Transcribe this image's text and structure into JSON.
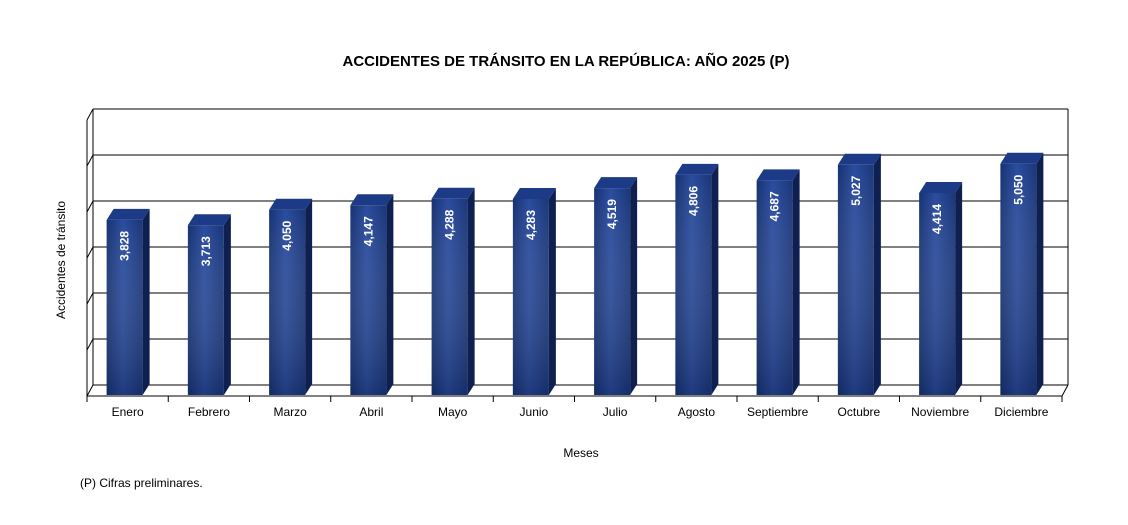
{
  "chart_data": {
    "type": "bar",
    "title": "ACCIDENTES DE TRÁNSITO EN LA REPÚBLICA: AÑO 2025 (P)",
    "xlabel": "Meses",
    "ylabel": "Accidentes de tránsito",
    "categories": [
      "Enero",
      "Febrero",
      "Marzo",
      "Abril",
      "Mayo",
      "Junio",
      "Julio",
      "Agosto",
      "Septiembre",
      "Octubre",
      "Noviembre",
      "Diciembre"
    ],
    "values": [
      3828,
      3713,
      4050,
      4147,
      4288,
      4283,
      4519,
      4806,
      4687,
      5027,
      4414,
      5050
    ],
    "value_labels": [
      "3,828",
      "3,713",
      "4,050",
      "4,147",
      "4,288",
      "4,283",
      "4,519",
      "4,806",
      "4,687",
      "5,027",
      "4,414",
      "5,050"
    ],
    "ylim": [
      0,
      6000
    ],
    "grid": true,
    "style": "3d-column",
    "bar_color": "#1f3f8f"
  },
  "footnote": "(P) Cifras  preliminares."
}
